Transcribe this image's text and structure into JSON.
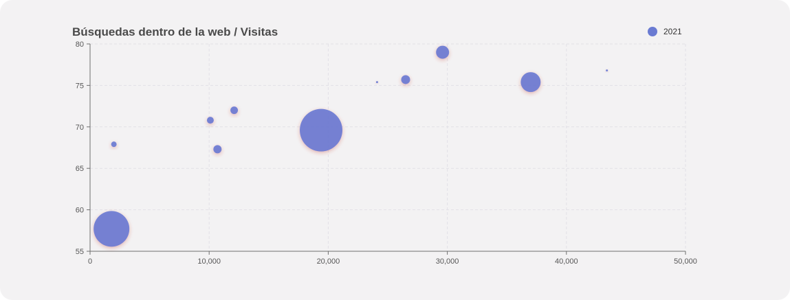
{
  "chart_data": {
    "type": "scatter",
    "title": "Búsquedas dentro de la web / Visitas",
    "xlabel": "",
    "ylabel": "",
    "xlim": [
      0,
      50000
    ],
    "ylim": [
      55,
      80
    ],
    "x_ticks": [
      "0",
      "10,000",
      "20,000",
      "30,000",
      "40,000",
      "50,000"
    ],
    "x_tick_values": [
      0,
      10000,
      20000,
      30000,
      40000,
      50000
    ],
    "y_ticks": [
      "55",
      "60",
      "65",
      "70",
      "75",
      "80"
    ],
    "y_tick_values": [
      55,
      60,
      65,
      70,
      75,
      80
    ],
    "grid": true,
    "legend_position": "top-right",
    "series": [
      {
        "name": "2021",
        "color": "#6a7bd2",
        "points": [
          {
            "x": 1800,
            "y": 57.7,
            "size": 52
          },
          {
            "x": 2000,
            "y": 67.9,
            "size": 8
          },
          {
            "x": 10100,
            "y": 70.8,
            "size": 10
          },
          {
            "x": 10700,
            "y": 67.3,
            "size": 12
          },
          {
            "x": 12100,
            "y": 72.0,
            "size": 11
          },
          {
            "x": 19400,
            "y": 69.6,
            "size": 62
          },
          {
            "x": 24100,
            "y": 75.4,
            "size": 3
          },
          {
            "x": 26500,
            "y": 75.7,
            "size": 13
          },
          {
            "x": 29600,
            "y": 79.0,
            "size": 19
          },
          {
            "x": 37000,
            "y": 75.4,
            "size": 29
          },
          {
            "x": 43400,
            "y": 76.8,
            "size": 3
          }
        ]
      }
    ]
  }
}
